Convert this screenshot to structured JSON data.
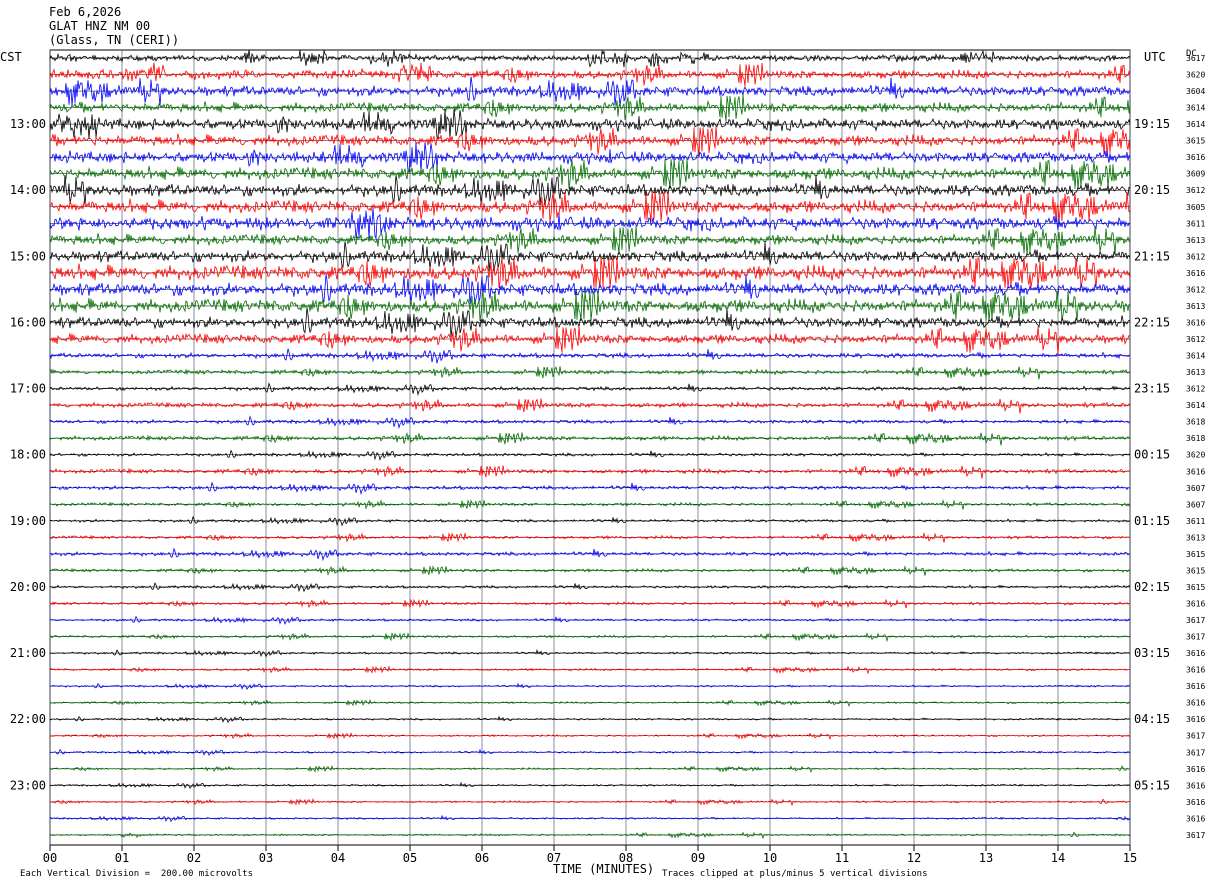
{
  "header": {
    "date": "Feb 6,2026",
    "station": "GLAT HNZ NM 00",
    "location": "(Glass, TN (CERI))"
  },
  "labels": {
    "left_tz": "CST",
    "right_tz": "UTC",
    "dc": "DC",
    "xlabel": "TIME (MINUTES)",
    "scale_note": "Each Vertical Division =  200.00 microvolts",
    "clip_note": "Traces clipped at plus/minus 5 vertical divisions"
  },
  "colors": {
    "trace_cycle": [
      "#000000",
      "#ff0000",
      "#0000ff",
      "#007000"
    ],
    "grid": "#5a5a78"
  },
  "chart_data": {
    "type": "line",
    "title": "",
    "xlabel": "TIME (MINUTES)",
    "ylabel": "",
    "xlim": [
      0,
      15
    ],
    "x_ticks": [
      "00",
      "01",
      "02",
      "03",
      "04",
      "05",
      "06",
      "07",
      "08",
      "09",
      "10",
      "11",
      "12",
      "13",
      "14",
      "15"
    ],
    "row_interval_minutes": 15,
    "left_hour_labels": [
      "13:00",
      "14:00",
      "15:00",
      "16:00",
      "17:00",
      "18:00",
      "19:00",
      "20:00",
      "21:00",
      "22:00",
      "23:00"
    ],
    "right_hour_labels": [
      "19:15",
      "20:15",
      "21:15",
      "22:15",
      "23:15",
      "00:15",
      "01:15",
      "02:15",
      "03:15",
      "04:15",
      "05:15"
    ],
    "dc_offsets": [
      3617,
      3620,
      3604,
      3614,
      3614,
      3615,
      3616,
      3609,
      3612,
      3605,
      3611,
      3613,
      3612,
      3616,
      3612,
      3613,
      3616,
      3612,
      3614,
      3613,
      3612,
      3614,
      3618,
      3618,
      3620,
      3616,
      3607,
      3607,
      3611,
      3613,
      3615,
      3615,
      3615,
      3616,
      3617,
      3617,
      3616,
      3616,
      3616,
      3616,
      3616,
      3617,
      3617,
      3616,
      3616,
      3616,
      3616,
      3617
    ],
    "row_amplitude_divisions": [
      1.0,
      1.4,
      1.7,
      1.6,
      1.8,
      1.8,
      1.8,
      2.0,
      2.0,
      2.1,
      2.1,
      1.7,
      1.9,
      2.4,
      2.1,
      2.2,
      1.8,
      1.6,
      0.8,
      0.7,
      0.6,
      0.8,
      0.6,
      0.7,
      0.5,
      0.7,
      0.6,
      0.5,
      0.45,
      0.5,
      0.6,
      0.5,
      0.45,
      0.45,
      0.4,
      0.4,
      0.35,
      0.35,
      0.3,
      0.3,
      0.3,
      0.3,
      0.3,
      0.3,
      0.3,
      0.3,
      0.3,
      0.3
    ],
    "vertical_division_microvolts": 200.0,
    "clip_divisions": 5,
    "grid": true
  }
}
